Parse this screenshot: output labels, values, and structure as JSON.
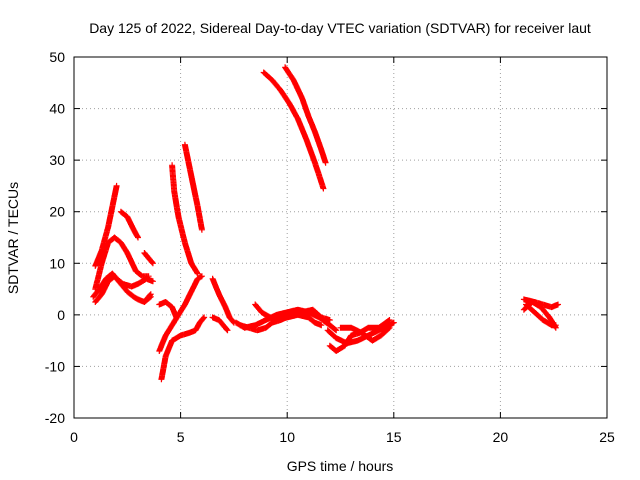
{
  "chart_data": {
    "type": "scatter",
    "title": "Day 125 of 2022, Sidereal Day-to-day VTEC variation (SDTVAR) for receiver laut",
    "xlabel": "GPS time / hours",
    "ylabel": "SDTVAR / TECUs",
    "xlim": [
      0,
      25
    ],
    "ylim": [
      -20,
      50
    ],
    "x_ticks": [
      0,
      5,
      10,
      15,
      20,
      25
    ],
    "y_ticks": [
      -20,
      -10,
      0,
      10,
      20,
      30,
      40,
      50
    ],
    "grid": true,
    "marker": "+",
    "series_color": "#ff0000",
    "tracks": [
      {
        "name": "track-1",
        "points": [
          [
            1.0,
            9.5
          ],
          [
            1.3,
            12.5
          ],
          [
            1.6,
            17.0
          ],
          [
            1.8,
            21.0
          ],
          [
            2.0,
            25.0
          ]
        ]
      },
      {
        "name": "track-2",
        "points": [
          [
            1.0,
            5.0
          ],
          [
            1.3,
            10.0
          ],
          [
            1.6,
            14.0
          ],
          [
            1.9,
            15.0
          ],
          [
            2.2,
            14.0
          ],
          [
            2.5,
            12.0
          ],
          [
            2.9,
            8.5
          ],
          [
            3.2,
            7.5
          ],
          [
            3.5,
            7.5
          ]
        ]
      },
      {
        "name": "track-3",
        "points": [
          [
            0.9,
            3.5
          ],
          [
            1.2,
            5.0
          ],
          [
            1.5,
            7.0
          ],
          [
            1.8,
            8.0
          ],
          [
            2.0,
            7.0
          ],
          [
            2.3,
            6.0
          ],
          [
            2.7,
            5.5
          ],
          [
            3.0,
            6.0
          ],
          [
            3.4,
            7.0
          ],
          [
            3.7,
            6.5
          ]
        ]
      },
      {
        "name": "track-4",
        "points": [
          [
            1.0,
            2.5
          ],
          [
            1.3,
            4.0
          ],
          [
            1.6,
            6.5
          ],
          [
            1.9,
            7.5
          ],
          [
            2.2,
            6.0
          ],
          [
            2.5,
            4.5
          ],
          [
            2.8,
            3.5
          ],
          [
            3.0,
            3.0
          ],
          [
            3.3,
            2.5
          ],
          [
            3.6,
            3.5
          ]
        ]
      },
      {
        "name": "track-5",
        "points": [
          [
            2.2,
            20.0
          ],
          [
            2.5,
            19.0
          ],
          [
            2.8,
            16.5
          ],
          [
            3.0,
            15.0
          ]
        ]
      },
      {
        "name": "track-6",
        "points": [
          [
            3.3,
            12.0
          ],
          [
            3.5,
            11.0
          ],
          [
            3.7,
            10.0
          ]
        ]
      },
      {
        "name": "track-7",
        "points": [
          [
            3.6,
            4.0
          ],
          [
            3.4,
            3.0
          ]
        ]
      },
      {
        "name": "track-8",
        "points": [
          [
            4.0,
            -7.0
          ],
          [
            4.3,
            -4.0
          ],
          [
            4.6,
            -2.0
          ],
          [
            4.9,
            0.0
          ],
          [
            5.2,
            2.0
          ],
          [
            5.5,
            4.5
          ],
          [
            5.8,
            7.0
          ],
          [
            6.0,
            7.5
          ]
        ]
      },
      {
        "name": "track-9",
        "points": [
          [
            4.1,
            -12.5
          ],
          [
            4.3,
            -8.0
          ],
          [
            4.6,
            -5.0
          ],
          [
            5.0,
            -4.0
          ],
          [
            5.4,
            -3.5
          ],
          [
            5.7,
            -3.0
          ],
          [
            5.9,
            -1.5
          ],
          [
            6.1,
            -0.5
          ]
        ]
      },
      {
        "name": "track-10",
        "points": [
          [
            4.0,
            2.0
          ],
          [
            4.3,
            2.5
          ],
          [
            4.6,
            1.5
          ],
          [
            4.8,
            -0.5
          ]
        ]
      },
      {
        "name": "track-11",
        "points": [
          [
            4.6,
            29.0
          ],
          [
            4.7,
            24.0
          ],
          [
            4.9,
            19.0
          ],
          [
            5.2,
            14.0
          ],
          [
            5.5,
            10.0
          ],
          [
            5.8,
            8.0
          ]
        ]
      },
      {
        "name": "track-12",
        "points": [
          [
            5.2,
            33.0
          ],
          [
            5.4,
            29.0
          ],
          [
            5.6,
            25.0
          ],
          [
            5.8,
            21.0
          ],
          [
            6.0,
            16.5
          ]
        ]
      },
      {
        "name": "track-13",
        "points": [
          [
            6.5,
            7.0
          ],
          [
            6.8,
            4.0
          ],
          [
            7.1,
            1.5
          ],
          [
            7.3,
            -0.5
          ],
          [
            7.5,
            -1.5
          ]
        ]
      },
      {
        "name": "track-14",
        "points": [
          [
            6.5,
            -0.5
          ],
          [
            6.8,
            -1.0
          ],
          [
            7.2,
            -3.0
          ]
        ]
      },
      {
        "name": "track-15",
        "points": [
          [
            7.6,
            -1.5
          ],
          [
            8.0,
            -2.5
          ],
          [
            8.5,
            -2.0
          ],
          [
            9.0,
            -1.0
          ],
          [
            9.5,
            0.0
          ],
          [
            10.0,
            0.5
          ],
          [
            10.5,
            1.0
          ],
          [
            11.0,
            0.5
          ],
          [
            11.5,
            -0.5
          ],
          [
            12.0,
            -2.0
          ],
          [
            12.3,
            -3.0
          ]
        ]
      },
      {
        "name": "track-16",
        "points": [
          [
            8.5,
            2.0
          ],
          [
            8.8,
            0.5
          ],
          [
            9.2,
            -0.5
          ],
          [
            9.5,
            -1.0
          ],
          [
            10.0,
            -0.5
          ],
          [
            10.5,
            0.0
          ],
          [
            11.0,
            -0.5
          ],
          [
            11.3,
            -1.5
          ],
          [
            11.6,
            -2.0
          ]
        ]
      },
      {
        "name": "track-17",
        "points": [
          [
            7.8,
            -2.0
          ],
          [
            8.2,
            -2.5
          ],
          [
            8.6,
            -3.0
          ],
          [
            9.0,
            -2.5
          ],
          [
            9.3,
            -1.5
          ],
          [
            9.7,
            -1.0
          ],
          [
            10.2,
            0.0
          ],
          [
            10.7,
            0.5
          ],
          [
            11.2,
            1.0
          ],
          [
            11.6,
            -0.5
          ],
          [
            12.0,
            -1.0
          ]
        ]
      },
      {
        "name": "track-18",
        "points": [
          [
            8.9,
            47.0
          ],
          [
            9.3,
            45.5
          ],
          [
            9.7,
            43.5
          ],
          [
            10.1,
            41.0
          ],
          [
            10.5,
            38.0
          ],
          [
            10.9,
            34.0
          ],
          [
            11.3,
            29.5
          ],
          [
            11.7,
            24.5
          ]
        ]
      },
      {
        "name": "track-19",
        "points": [
          [
            9.9,
            48.0
          ],
          [
            10.3,
            45.5
          ],
          [
            10.7,
            42.0
          ],
          [
            11.0,
            38.5
          ],
          [
            11.3,
            35.5
          ],
          [
            11.6,
            32.0
          ],
          [
            11.8,
            29.5
          ]
        ]
      },
      {
        "name": "track-20",
        "points": [
          [
            11.9,
            -3.0
          ],
          [
            12.3,
            -4.5
          ],
          [
            12.8,
            -5.5
          ],
          [
            13.3,
            -5.0
          ],
          [
            13.8,
            -4.0
          ],
          [
            14.3,
            -3.0
          ],
          [
            14.8,
            -2.0
          ],
          [
            15.0,
            -1.5
          ]
        ]
      },
      {
        "name": "track-21",
        "points": [
          [
            12.0,
            -6.0
          ],
          [
            12.3,
            -7.0
          ],
          [
            12.7,
            -6.0
          ],
          [
            13.0,
            -4.0
          ],
          [
            13.4,
            -3.5
          ],
          [
            13.8,
            -2.5
          ],
          [
            14.3,
            -2.5
          ],
          [
            14.8,
            -1.0
          ]
        ]
      },
      {
        "name": "track-22",
        "points": [
          [
            12.5,
            -2.5
          ],
          [
            13.0,
            -2.5
          ],
          [
            13.5,
            -3.5
          ],
          [
            14.0,
            -5.0
          ],
          [
            14.4,
            -4.0
          ],
          [
            14.8,
            -2.5
          ]
        ]
      },
      {
        "name": "track-23",
        "points": [
          [
            21.1,
            3.0
          ],
          [
            21.6,
            2.5
          ],
          [
            22.0,
            2.0
          ],
          [
            22.4,
            1.5
          ],
          [
            22.7,
            2.0
          ]
        ]
      },
      {
        "name": "track-24",
        "points": [
          [
            21.2,
            2.0
          ],
          [
            21.6,
            0.5
          ],
          [
            22.0,
            -1.0
          ],
          [
            22.4,
            -2.0
          ],
          [
            22.6,
            -2.0
          ]
        ]
      },
      {
        "name": "track-25",
        "points": [
          [
            21.1,
            1.0
          ],
          [
            21.5,
            2.5
          ],
          [
            21.9,
            1.5
          ],
          [
            22.3,
            -0.5
          ],
          [
            22.6,
            -2.5
          ]
        ]
      }
    ]
  }
}
